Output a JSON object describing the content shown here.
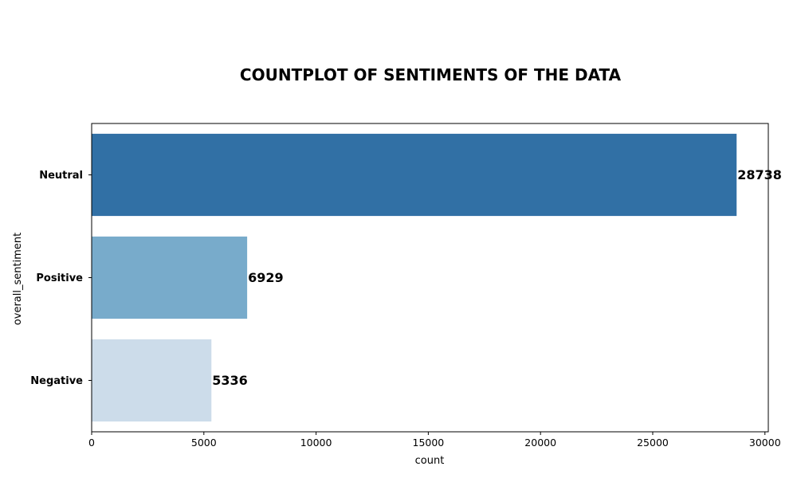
{
  "chart_data": {
    "type": "bar",
    "orientation": "horizontal",
    "title": "COUNTPLOT OF SENTIMENTS OF THE DATA",
    "xlabel": "count",
    "ylabel": "overall_sentiment",
    "categories": [
      "Neutral",
      "Positive",
      "Negative"
    ],
    "values": [
      28738,
      6929,
      5336
    ],
    "data_labels": [
      "28738",
      "6929",
      "5336"
    ],
    "colors": [
      "#3170a5",
      "#78abcb",
      "#ccdcea"
    ],
    "xlim": [
      0,
      30150
    ],
    "x_ticks": [
      0,
      5000,
      10000,
      15000,
      20000,
      25000,
      30000
    ],
    "x_tick_labels": [
      "0",
      "5000",
      "10000",
      "15000",
      "20000",
      "25000",
      "30000"
    ],
    "grid": false,
    "legend": "none"
  }
}
